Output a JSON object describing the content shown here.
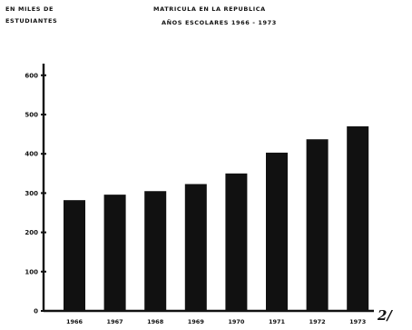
{
  "header": {
    "unit_line1": "EN MILES DE",
    "unit_line2": "ESTUDIANTES",
    "title_line1": "MATRICULA EN LA REPUBLICA",
    "title_line2": "AÑOS ESCOLARES 1966 - 1973"
  },
  "footnote_mark": "2/",
  "colors": {
    "bar": "#111111",
    "axis": "#111111",
    "background": "#ffffff"
  },
  "chart_data": {
    "type": "bar",
    "title": "MATRICULA EN LA REPUBLICA AÑOS ESCOLARES 1966 - 1973",
    "ylabel": "EN MILES DE ESTUDIANTES",
    "xlabel": "",
    "categories": [
      "1966",
      "1967",
      "1968",
      "1969",
      "1970",
      "1971",
      "1972",
      "1973"
    ],
    "values": [
      282,
      296,
      305,
      323,
      350,
      403,
      437,
      470
    ],
    "ylim": [
      0,
      650
    ],
    "yticks": [
      {
        "value": 0,
        "label": "0"
      },
      {
        "value": 100,
        "label": "100"
      },
      {
        "value": 200,
        "label": "200"
      },
      {
        "value": 300,
        "label": "300"
      },
      {
        "value": 400,
        "label": "400"
      },
      {
        "value": 500,
        "label": "500"
      },
      {
        "value": 600,
        "label": "600"
      }
    ],
    "grid": false,
    "legend": "none"
  }
}
